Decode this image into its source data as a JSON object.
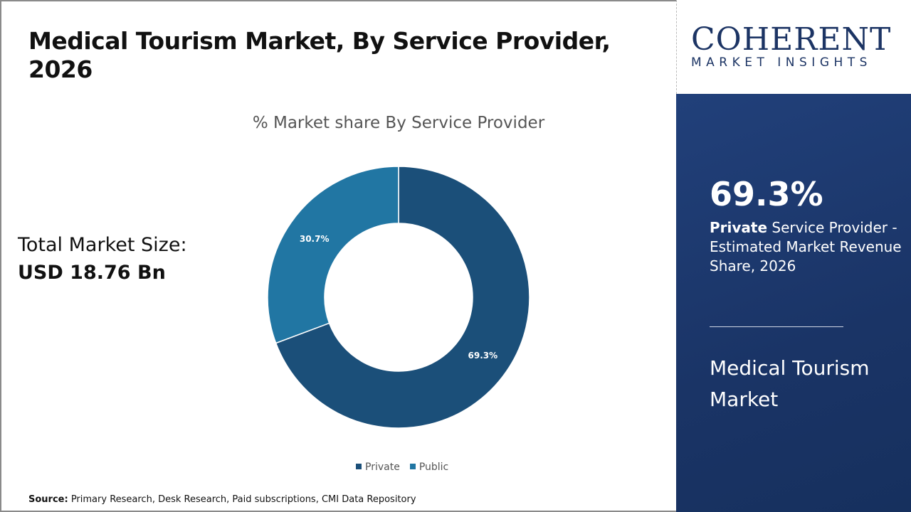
{
  "title": "Medical Tourism Market, By Service Provider, 2026",
  "total": {
    "label": "Total Market Size:",
    "value": "USD 18.76 Bn"
  },
  "source": {
    "label": "Source:",
    "text": " Primary Research, Desk Research, Paid subscriptions, CMI Data Repository"
  },
  "logo": {
    "line1": "COHERENT",
    "line2": "MARKET INSIGHTS"
  },
  "panel": {
    "percent": "69.3%",
    "desc_bold": "Private",
    "desc_rest": " Service Provider - Estimated Market Revenue Share, 2026",
    "market": "Medical Tourism Market"
  },
  "chart_data": {
    "type": "pie",
    "subtype": "donut",
    "title": "% Market share By Service Provider",
    "categories": [
      "Private",
      "Public"
    ],
    "values": [
      69.3,
      30.7
    ],
    "labels": [
      "69.3%",
      "30.7%"
    ],
    "colors": [
      "#1b4f79",
      "#2176a3"
    ],
    "legend": "bottom"
  }
}
